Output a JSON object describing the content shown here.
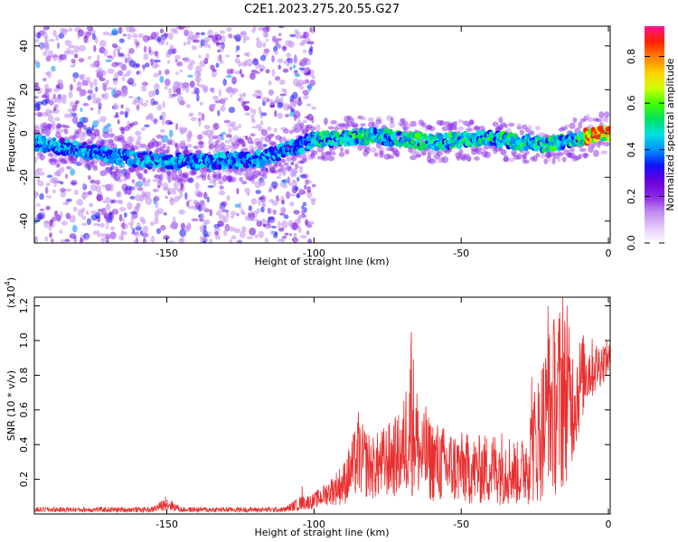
{
  "title": "C2E1.2023.275.20.55.G27",
  "chart_data": [
    {
      "type": "heatmap",
      "xlabel": "Height of straight line (km)",
      "ylabel": "Frequency (Hz)",
      "xlim": [
        -195,
        0.6
      ],
      "ylim": [
        -50,
        49
      ],
      "xticks": [
        -150,
        -100,
        -50,
        0
      ],
      "xtick_labels": [
        "-150",
        "-100",
        "-50",
        "0"
      ],
      "yticks": [
        -40,
        -20,
        0,
        20,
        40
      ],
      "ytick_labels": [
        "-40",
        "-20",
        "0",
        "20",
        "40"
      ],
      "colorbar": {
        "label": "Normalized spectral amplitude",
        "range": [
          0,
          0.93
        ],
        "ticks": [
          0.0,
          0.2,
          0.4,
          0.6,
          0.8
        ],
        "tick_labels": [
          "0.0",
          "0.2",
          "0.4",
          "0.6",
          "0.8"
        ],
        "colormap": [
          "#ffffff",
          "#e6c8f8",
          "#c08cf0",
          "#8a28e6",
          "#6a00d8",
          "#1010ff",
          "#0090ff",
          "#00e0e0",
          "#00e060",
          "#40ff00",
          "#d0ff00",
          "#ffd000",
          "#ff8000",
          "#ff2000",
          "#ff1090"
        ]
      },
      "ridge": [
        {
          "x": -195,
          "f": -4
        },
        {
          "x": -160,
          "f": -12
        },
        {
          "x": -140,
          "f": -13
        },
        {
          "x": -120,
          "f": -12
        },
        {
          "x": -110,
          "f": -8
        },
        {
          "x": -100,
          "f": -3
        },
        {
          "x": -80,
          "f": -1
        },
        {
          "x": -60,
          "f": -4
        },
        {
          "x": -40,
          "f": -2
        },
        {
          "x": -30,
          "f": -4
        },
        {
          "x": -20,
          "f": -5
        },
        {
          "x": -10,
          "f": -2
        },
        {
          "x": 0,
          "f": 0
        }
      ],
      "grid": false
    },
    {
      "type": "line",
      "xlabel": "Height of straight line (km)",
      "ylabel": "SNR (10 * v/v)",
      "y_multiplier": "(x10",
      "y_multiplier_exp": "4",
      "y_multiplier_close": ")",
      "xlim": [
        -195,
        0.6
      ],
      "ylim": [
        0.0,
        1.25
      ],
      "xticks": [
        -150,
        -100,
        -50,
        0
      ],
      "xtick_labels": [
        "-150",
        "-100",
        "-50",
        "0"
      ],
      "yticks": [
        0.2,
        0.4,
        0.6,
        0.8,
        1.0,
        1.2
      ],
      "ytick_labels": [
        "0.2",
        "0.4",
        "0.6",
        "0.8",
        "1.0",
        "1.2"
      ],
      "color": "#e83030",
      "envelope": [
        {
          "x": -195,
          "lo": 0.01,
          "hi": 0.04
        },
        {
          "x": -155,
          "lo": 0.01,
          "hi": 0.04
        },
        {
          "x": -150,
          "lo": 0.02,
          "hi": 0.1
        },
        {
          "x": -145,
          "lo": 0.01,
          "hi": 0.04
        },
        {
          "x": -110,
          "lo": 0.01,
          "hi": 0.04
        },
        {
          "x": -105,
          "lo": 0.02,
          "hi": 0.1
        },
        {
          "x": -100,
          "lo": 0.03,
          "hi": 0.12
        },
        {
          "x": -95,
          "lo": 0.05,
          "hi": 0.2
        },
        {
          "x": -90,
          "lo": 0.05,
          "hi": 0.3
        },
        {
          "x": -85,
          "lo": 0.1,
          "hi": 0.55
        },
        {
          "x": -80,
          "lo": 0.08,
          "hi": 0.45
        },
        {
          "x": -70,
          "lo": 0.1,
          "hi": 0.6
        },
        {
          "x": -67,
          "lo": 0.1,
          "hi": 1.05
        },
        {
          "x": -64,
          "lo": 0.08,
          "hi": 0.6
        },
        {
          "x": -55,
          "lo": 0.05,
          "hi": 0.5
        },
        {
          "x": -45,
          "lo": 0.05,
          "hi": 0.45
        },
        {
          "x": -35,
          "lo": 0.05,
          "hi": 0.5
        },
        {
          "x": -30,
          "lo": 0.05,
          "hi": 0.4
        },
        {
          "x": -25,
          "lo": 0.05,
          "hi": 0.75
        },
        {
          "x": -20,
          "lo": 0.1,
          "hi": 1.1
        },
        {
          "x": -16,
          "lo": 0.1,
          "hi": 1.25
        },
        {
          "x": -12,
          "lo": 0.3,
          "hi": 1.0
        },
        {
          "x": -8,
          "lo": 0.6,
          "hi": 1.05
        },
        {
          "x": -4,
          "lo": 0.7,
          "hi": 1.0
        },
        {
          "x": 0,
          "lo": 0.8,
          "hi": 1.0
        }
      ],
      "peaks": [
        {
          "x": -150.5,
          "y": 0.1
        },
        {
          "x": -104,
          "y": 0.16
        },
        {
          "x": -85,
          "y": 0.59
        },
        {
          "x": -67,
          "y": 1.05
        },
        {
          "x": -62,
          "y": 0.62
        },
        {
          "x": -26,
          "y": 0.79
        },
        {
          "x": -20.5,
          "y": 1.2
        },
        {
          "x": -15.5,
          "y": 1.25
        },
        {
          "x": -14,
          "y": 1.2
        }
      ]
    }
  ]
}
